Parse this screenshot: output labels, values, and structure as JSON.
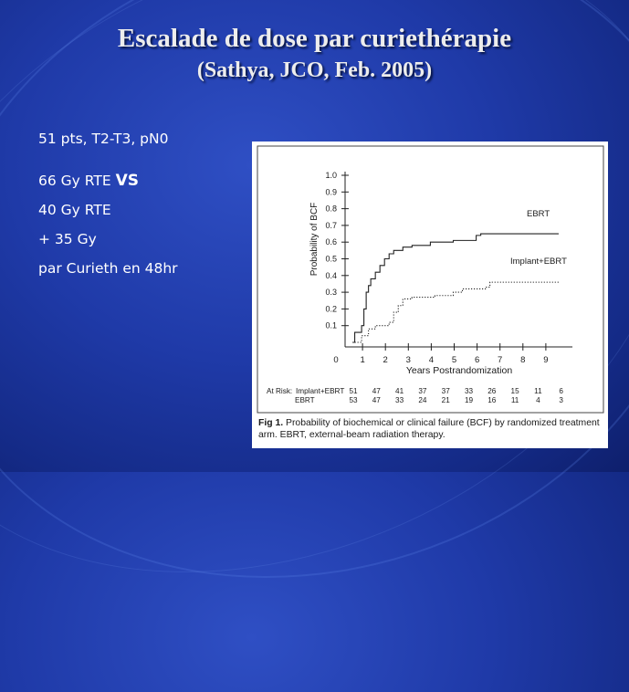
{
  "slide": {
    "title": "Escalade de dose par curiethérapie",
    "subtitle": "(Sathya, JCO, Feb. 2005)",
    "bullets": [
      {
        "text": "51 pts, T2-T3, pN0"
      },
      {
        "text": "66 Gy RTE ",
        "emph": "VS"
      },
      {
        "text": "40 Gy RTE"
      },
      {
        "text": "+ 35 Gy"
      },
      {
        "text": "par Curieth en 48hr"
      }
    ]
  },
  "figure": {
    "caption_label": "Fig 1.",
    "caption_text": "Probability of biochemical or clinical failure (BCF) by randomized treatment arm. EBRT, external-beam radiation therapy.",
    "at_risk_label": "At Risk:",
    "at_risk": [
      {
        "group": "Implant+EBRT",
        "values": [
          "51",
          "47",
          "41",
          "37",
          "37",
          "33",
          "26",
          "15",
          "11",
          "6"
        ]
      },
      {
        "group": "EBRT",
        "values": [
          "53",
          "47",
          "33",
          "24",
          "21",
          "19",
          "16",
          "11",
          "4",
          "3"
        ]
      }
    ]
  },
  "chart_data": {
    "type": "line",
    "xlabel": "Years Postrandomization",
    "ylabel": "Probability of BCF",
    "xlim": [
      0,
      10
    ],
    "ylim": [
      0,
      1.0
    ],
    "xticks": [
      "0",
      "1",
      "2",
      "3",
      "4",
      "5",
      "6",
      "7",
      "8",
      "9"
    ],
    "yticks": [
      "0.1",
      "0.2",
      "0.3",
      "0.4",
      "0.5",
      "0.6",
      "0.7",
      "0.8",
      "0.9",
      "1.0"
    ],
    "series": [
      {
        "name": "EBRT",
        "style": "solid",
        "points": [
          [
            0.6,
            0
          ],
          [
            0.7,
            0.06
          ],
          [
            0.8,
            0.06
          ],
          [
            1.0,
            0.1
          ],
          [
            1.1,
            0.2
          ],
          [
            1.2,
            0.3
          ],
          [
            1.3,
            0.34
          ],
          [
            1.4,
            0.38
          ],
          [
            1.6,
            0.42
          ],
          [
            1.8,
            0.46
          ],
          [
            2.0,
            0.5
          ],
          [
            2.2,
            0.53
          ],
          [
            2.4,
            0.55
          ],
          [
            2.8,
            0.57
          ],
          [
            3.2,
            0.58
          ],
          [
            4.0,
            0.6
          ],
          [
            5.0,
            0.61
          ],
          [
            6.0,
            0.64
          ],
          [
            6.2,
            0.65
          ],
          [
            9.6,
            0.65
          ]
        ]
      },
      {
        "name": "Implant+EBRT",
        "style": "dotted",
        "points": [
          [
            0.7,
            0
          ],
          [
            1.0,
            0.04
          ],
          [
            1.3,
            0.08
          ],
          [
            1.6,
            0.1
          ],
          [
            2.2,
            0.12
          ],
          [
            2.4,
            0.18
          ],
          [
            2.6,
            0.22
          ],
          [
            2.8,
            0.26
          ],
          [
            3.2,
            0.27
          ],
          [
            4.2,
            0.28
          ],
          [
            5.0,
            0.3
          ],
          [
            5.4,
            0.32
          ],
          [
            6.4,
            0.33
          ],
          [
            6.6,
            0.36
          ],
          [
            9.6,
            0.36
          ]
        ]
      }
    ]
  }
}
